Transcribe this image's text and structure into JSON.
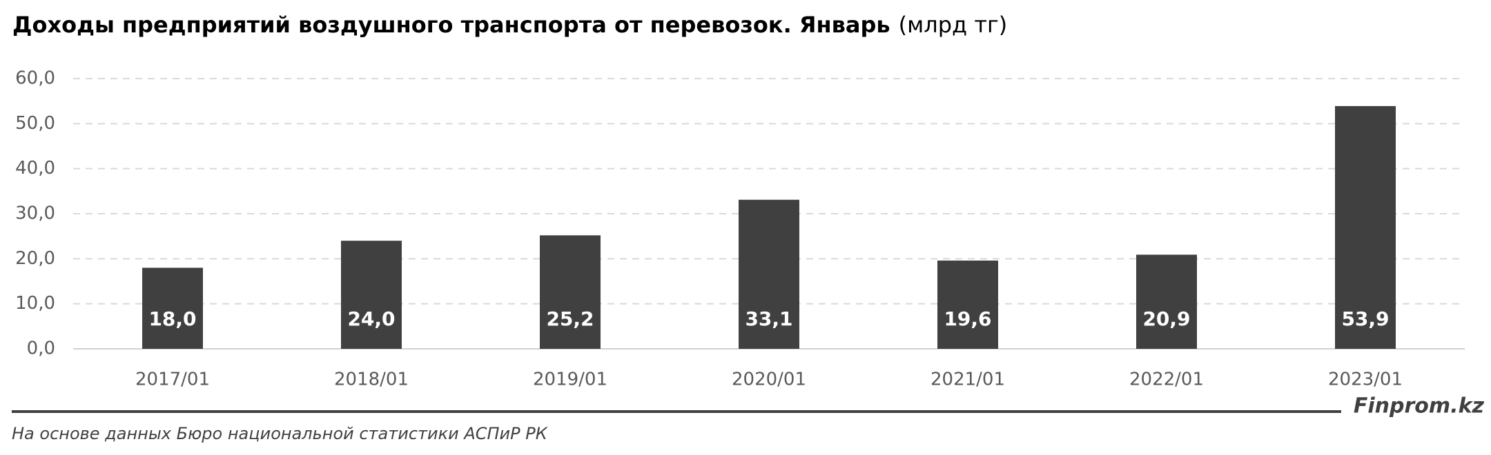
{
  "chart_data": {
    "type": "bar",
    "title": "Доходы предприятий воздушного транспорта от перевозок. Январь",
    "unit": "(млрд тг)",
    "categories": [
      "2017/01",
      "2018/01",
      "2019/01",
      "2020/01",
      "2021/01",
      "2022/01",
      "2023/01"
    ],
    "values": [
      18.0,
      24.0,
      25.2,
      33.1,
      19.6,
      20.9,
      53.9
    ],
    "value_labels": [
      "18,0",
      "24,0",
      "25,2",
      "33,1",
      "19,6",
      "20,9",
      "53,9"
    ],
    "color": "#404040",
    "ylim": [
      0,
      60
    ],
    "yticks": [
      {
        "value": 0,
        "label": "0,0"
      },
      {
        "value": 10,
        "label": "10,0"
      },
      {
        "value": 20,
        "label": "20,0"
      },
      {
        "value": 30,
        "label": "30,0"
      },
      {
        "value": 40,
        "label": "40,0"
      },
      {
        "value": 50,
        "label": "50,0"
      },
      {
        "value": 60,
        "label": "60,0"
      }
    ],
    "grid": true,
    "source": "На основе данных Бюро национальной статистики АСПиР РК",
    "brand": "Finprom.kz"
  }
}
